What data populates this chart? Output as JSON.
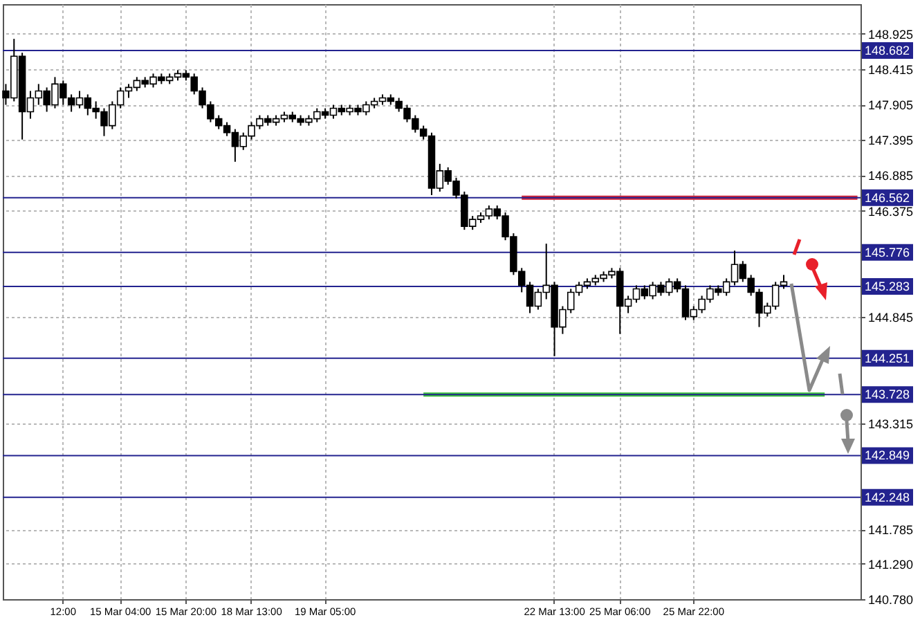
{
  "chart_data": {
    "type": "candlestick",
    "categories": [
      null,
      null,
      null,
      null,
      null,
      null,
      null,
      "12:00",
      null,
      null,
      null,
      null,
      null,
      null,
      "15 Mar 04:00",
      null,
      null,
      null,
      null,
      null,
      null,
      null,
      "15 Mar 20:00",
      null,
      null,
      null,
      null,
      null,
      null,
      null,
      "18 Mar 13:00",
      null,
      null,
      null,
      null,
      null,
      null,
      null,
      null,
      "19 Mar 05:00",
      null,
      null,
      null,
      null,
      null,
      null,
      null,
      null,
      null,
      null,
      null,
      null,
      null,
      null,
      null,
      null,
      null,
      null,
      null,
      null,
      null,
      null,
      null,
      null,
      null,
      null,
      null,
      "22 Mar 13:00",
      null,
      null,
      null,
      null,
      null,
      null,
      null,
      "25 Mar 06:00",
      null,
      null,
      null,
      null,
      null,
      null,
      null,
      null,
      "25 Mar 22:00",
      null,
      null,
      null,
      null,
      null,
      null,
      null,
      null,
      null,
      null,
      null,
      null,
      null,
      null,
      null,
      null,
      null,
      null,
      null,
      null
    ],
    "ohlc": [
      [
        148.1,
        148.2,
        147.9,
        148.0
      ],
      [
        148.0,
        148.85,
        147.95,
        148.6
      ],
      [
        148.6,
        148.65,
        147.4,
        147.8
      ],
      [
        147.8,
        148.1,
        147.7,
        148.0
      ],
      [
        148.0,
        148.2,
        147.9,
        148.1
      ],
      [
        148.1,
        148.15,
        147.8,
        147.9
      ],
      [
        147.9,
        148.3,
        147.85,
        148.2
      ],
      [
        148.2,
        148.25,
        147.9,
        148.0
      ],
      [
        148.0,
        148.05,
        147.8,
        147.9
      ],
      [
        147.9,
        148.1,
        147.85,
        148.0
      ],
      [
        148.0,
        148.05,
        147.75,
        147.85
      ],
      [
        147.85,
        147.95,
        147.7,
        147.8
      ],
      [
        147.8,
        147.85,
        147.45,
        147.6
      ],
      [
        147.6,
        147.95,
        147.55,
        147.9
      ],
      [
        147.9,
        148.15,
        147.85,
        148.1
      ],
      [
        148.1,
        148.2,
        148.0,
        148.15
      ],
      [
        148.15,
        148.3,
        148.1,
        148.25
      ],
      [
        148.25,
        148.3,
        148.15,
        148.2
      ],
      [
        148.2,
        148.35,
        148.15,
        148.3
      ],
      [
        148.3,
        148.35,
        148.2,
        148.25
      ],
      [
        148.25,
        148.35,
        148.2,
        148.3
      ],
      [
        148.3,
        148.4,
        148.25,
        148.35
      ],
      [
        148.35,
        148.4,
        148.25,
        148.3
      ],
      [
        148.3,
        148.35,
        148.05,
        148.1
      ],
      [
        148.1,
        148.15,
        147.85,
        147.9
      ],
      [
        147.9,
        147.95,
        147.65,
        147.7
      ],
      [
        147.7,
        147.75,
        147.55,
        147.6
      ],
      [
        147.6,
        147.65,
        147.45,
        147.5
      ],
      [
        147.5,
        147.55,
        147.08,
        147.3
      ],
      [
        147.3,
        147.5,
        147.25,
        147.45
      ],
      [
        147.45,
        147.65,
        147.4,
        147.6
      ],
      [
        147.6,
        147.75,
        147.55,
        147.7
      ],
      [
        147.7,
        147.75,
        147.6,
        147.65
      ],
      [
        147.65,
        147.75,
        147.6,
        147.7
      ],
      [
        147.7,
        147.8,
        147.65,
        147.75
      ],
      [
        147.75,
        147.8,
        147.65,
        147.7
      ],
      [
        147.7,
        147.75,
        147.6,
        147.65
      ],
      [
        147.65,
        147.75,
        147.6,
        147.7
      ],
      [
        147.7,
        147.85,
        147.65,
        147.8
      ],
      [
        147.8,
        147.85,
        147.7,
        147.75
      ],
      [
        147.75,
        147.9,
        147.7,
        147.85
      ],
      [
        147.85,
        147.9,
        147.75,
        147.8
      ],
      [
        147.8,
        147.9,
        147.75,
        147.85
      ],
      [
        147.85,
        147.9,
        147.75,
        147.8
      ],
      [
        147.8,
        147.95,
        147.75,
        147.9
      ],
      [
        147.9,
        148.0,
        147.85,
        147.95
      ],
      [
        147.95,
        148.05,
        147.9,
        148.0
      ],
      [
        148.0,
        148.05,
        147.9,
        147.95
      ],
      [
        147.95,
        148.0,
        147.8,
        147.85
      ],
      [
        147.85,
        147.9,
        147.65,
        147.7
      ],
      [
        147.7,
        147.75,
        147.5,
        147.55
      ],
      [
        147.55,
        147.6,
        147.4,
        147.45
      ],
      [
        147.45,
        147.5,
        146.6,
        146.7
      ],
      [
        146.7,
        147.05,
        146.65,
        146.95
      ],
      [
        146.95,
        147.0,
        146.75,
        146.8
      ],
      [
        146.8,
        146.85,
        146.55,
        146.6
      ],
      [
        146.6,
        146.65,
        146.1,
        146.15
      ],
      [
        146.15,
        146.3,
        146.1,
        146.25
      ],
      [
        146.25,
        146.35,
        146.2,
        146.3
      ],
      [
        146.3,
        146.45,
        146.25,
        146.4
      ],
      [
        146.4,
        146.45,
        146.25,
        146.3
      ],
      [
        146.3,
        146.35,
        145.95,
        146.0
      ],
      [
        146.0,
        146.05,
        145.45,
        145.5
      ],
      [
        145.5,
        145.55,
        145.2,
        145.3
      ],
      [
        145.3,
        145.35,
        144.9,
        145.0
      ],
      [
        145.0,
        145.25,
        144.95,
        145.2
      ],
      [
        145.2,
        145.9,
        145.1,
        145.3
      ],
      [
        145.3,
        145.35,
        144.28,
        144.7
      ],
      [
        144.7,
        145.0,
        144.6,
        144.95
      ],
      [
        144.95,
        145.25,
        144.9,
        145.2
      ],
      [
        145.2,
        145.35,
        145.15,
        145.3
      ],
      [
        145.3,
        145.4,
        145.25,
        145.35
      ],
      [
        145.35,
        145.45,
        145.3,
        145.4
      ],
      [
        145.4,
        145.5,
        145.35,
        145.45
      ],
      [
        145.45,
        145.55,
        145.4,
        145.5
      ],
      [
        145.5,
        145.55,
        144.6,
        145.0
      ],
      [
        145.0,
        145.15,
        144.9,
        145.1
      ],
      [
        145.1,
        145.3,
        145.05,
        145.25
      ],
      [
        145.25,
        145.3,
        145.1,
        145.15
      ],
      [
        145.15,
        145.35,
        145.1,
        145.3
      ],
      [
        145.3,
        145.35,
        145.15,
        145.2
      ],
      [
        145.2,
        145.4,
        145.15,
        145.35
      ],
      [
        145.35,
        145.4,
        145.2,
        145.25
      ],
      [
        145.25,
        145.3,
        144.8,
        144.85
      ],
      [
        144.85,
        145.0,
        144.8,
        144.95
      ],
      [
        144.95,
        145.15,
        144.9,
        145.1
      ],
      [
        145.1,
        145.3,
        145.05,
        145.25
      ],
      [
        145.25,
        145.3,
        145.15,
        145.2
      ],
      [
        145.2,
        145.4,
        145.15,
        145.35
      ],
      [
        145.35,
        145.8,
        145.3,
        145.6
      ],
      [
        145.6,
        145.65,
        145.35,
        145.4
      ],
      [
        145.4,
        145.45,
        145.15,
        145.2
      ],
      [
        145.2,
        145.25,
        144.7,
        144.9
      ],
      [
        144.9,
        145.05,
        144.85,
        145.0
      ],
      [
        145.0,
        145.35,
        144.95,
        145.3
      ],
      [
        145.3,
        145.45,
        145.25,
        145.35
      ],
      null,
      null,
      null,
      null,
      null,
      null,
      null,
      null,
      null
    ],
    "series": [
      {
        "type": "line",
        "color": "#d0263a",
        "values": [
          null,
          null,
          null,
          null,
          null,
          null,
          null,
          null,
          null,
          null,
          null,
          null,
          null,
          null,
          null,
          null,
          null,
          null,
          null,
          null,
          null,
          null,
          null,
          null,
          null,
          null,
          null,
          null,
          null,
          null,
          null,
          null,
          null,
          null,
          null,
          null,
          null,
          null,
          null,
          null,
          null,
          null,
          null,
          null,
          null,
          null,
          null,
          null,
          null,
          null,
          null,
          null,
          null,
          null,
          null,
          null,
          null,
          null,
          null,
          null,
          null,
          null,
          null,
          146.562,
          146.562,
          146.562,
          146.562,
          146.562,
          146.562,
          146.562,
          146.562,
          146.562,
          146.562,
          146.562,
          146.562,
          146.562,
          146.562,
          146.562,
          146.562,
          146.562,
          146.562,
          146.562,
          146.562,
          146.562,
          146.562,
          146.562,
          146.562,
          146.562,
          146.562,
          146.562,
          146.562,
          146.562,
          146.562,
          146.562,
          146.562,
          146.562,
          146.562,
          146.562,
          146.562,
          146.562,
          146.562,
          146.562,
          146.562,
          146.562,
          146.562
        ]
      },
      {
        "type": "line",
        "color": "#3cbf3c",
        "values": [
          null,
          null,
          null,
          null,
          null,
          null,
          null,
          null,
          null,
          null,
          null,
          null,
          null,
          null,
          null,
          null,
          null,
          null,
          null,
          null,
          null,
          null,
          null,
          null,
          null,
          null,
          null,
          null,
          null,
          null,
          null,
          null,
          null,
          null,
          null,
          null,
          null,
          null,
          null,
          null,
          null,
          null,
          null,
          null,
          null,
          null,
          null,
          null,
          null,
          null,
          null,
          143.728,
          143.728,
          143.728,
          143.728,
          143.728,
          143.728,
          143.728,
          143.728,
          143.728,
          143.728,
          143.728,
          143.728,
          143.728,
          143.728,
          143.728,
          143.728,
          143.728,
          143.728,
          143.728,
          143.728,
          143.728,
          143.728,
          143.728,
          143.728,
          143.728,
          143.728,
          143.728,
          143.728,
          143.728,
          143.728,
          143.728,
          143.728,
          143.728,
          143.728,
          143.728,
          143.728,
          143.728,
          143.728,
          143.728,
          143.728,
          143.728,
          143.728,
          143.728,
          143.728,
          143.728,
          143.728,
          143.728,
          143.728,
          143.728,
          143.728,
          null,
          null,
          null,
          null
        ]
      }
    ],
    "ylim": [
      140.78,
      149.35
    ],
    "yticks": [
      148.925,
      148.415,
      147.905,
      147.395,
      146.885,
      146.375,
      144.845,
      143.315,
      141.785,
      {
        "value": 141.29,
        "label": "141.290"
      },
      {
        "value": 140.78,
        "label": "140.780"
      }
    ],
    "ref_lines": [
      {
        "axis": "y",
        "value": 148.682,
        "label": "148.682",
        "color": "#23238f"
      },
      {
        "axis": "y",
        "value": 146.562,
        "label": "146.562",
        "color": "#23238f"
      },
      {
        "axis": "y",
        "value": 145.776,
        "label": "145.776",
        "color": "#23238f"
      },
      {
        "axis": "y",
        "value": 145.283,
        "label": "145.283",
        "color": "#23238f"
      },
      {
        "axis": "y",
        "value": 144.251,
        "label": "144.251",
        "color": "#23238f"
      },
      {
        "axis": "y",
        "value": 143.728,
        "label": "143.728",
        "color": "#23238f"
      },
      {
        "axis": "y",
        "value": 142.849,
        "label": "142.849",
        "color": "#23238f"
      },
      {
        "axis": "y",
        "value": 142.248,
        "label": "142.248",
        "color": "#23238f"
      }
    ],
    "grid": true
  }
}
